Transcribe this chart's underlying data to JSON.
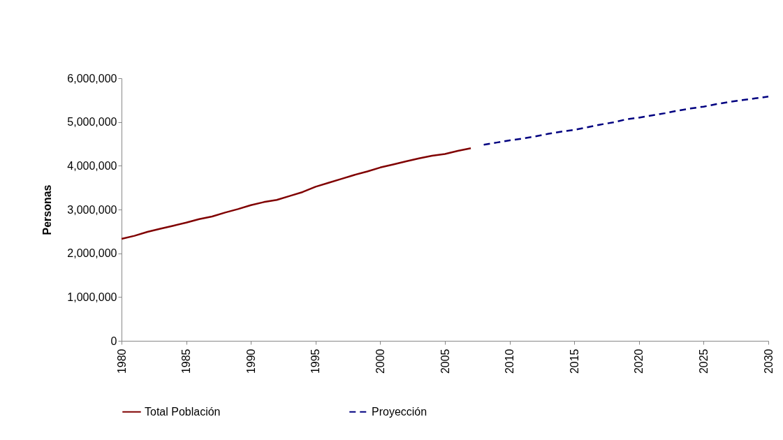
{
  "chart_data": {
    "type": "line",
    "ylabel": "Personas",
    "xlim": [
      1980,
      2030
    ],
    "xticks": [
      1980,
      1985,
      1990,
      1995,
      2000,
      2005,
      2010,
      2015,
      2020,
      2025,
      2030
    ],
    "ylim": [
      0,
      6000000
    ],
    "yticks": [
      0,
      {
        "value": 1000000,
        "label": "1,000,000"
      },
      {
        "value": 2000000,
        "label": "2,000,000"
      },
      {
        "value": 3000000,
        "label": "3,000,000"
      },
      {
        "value": 4000000,
        "label": "4,000,000"
      },
      {
        "value": 5000000,
        "label": "5,000,000"
      },
      {
        "value": 6000000,
        "label": "6,000,000"
      }
    ],
    "grid": false,
    "legend": "bottom",
    "series": [
      {
        "name": "Total Población",
        "color": "#800000",
        "line_style": "solid",
        "x": [
          1980,
          1981,
          1982,
          1983,
          1984,
          1985,
          1986,
          1987,
          1988,
          1989,
          1990,
          1991,
          1992,
          1993,
          1994,
          1995,
          1996,
          1997,
          1998,
          1999,
          2000,
          2001,
          2002,
          2003,
          2004,
          2005,
          2006,
          2007
        ],
        "values": [
          2330000,
          2400000,
          2490000,
          2560000,
          2630000,
          2700000,
          2780000,
          2840000,
          2930000,
          3010000,
          3100000,
          3170000,
          3220000,
          3310000,
          3400000,
          3520000,
          3610000,
          3700000,
          3790000,
          3870000,
          3960000,
          4030000,
          4100000,
          4170000,
          4230000,
          4270000,
          4340000,
          4400000
        ]
      },
      {
        "name": "Proyección",
        "color": "#000080",
        "line_style": "dashed",
        "x": [
          2008,
          2009,
          2010,
          2011,
          2012,
          2013,
          2014,
          2015,
          2016,
          2017,
          2018,
          2019,
          2020,
          2021,
          2022,
          2023,
          2024,
          2025,
          2026,
          2027,
          2028,
          2029,
          2030
        ],
        "values": [
          4480000,
          4530000,
          4580000,
          4620000,
          4670000,
          4730000,
          4780000,
          4820000,
          4880000,
          4940000,
          4990000,
          5060000,
          5100000,
          5150000,
          5200000,
          5260000,
          5310000,
          5350000,
          5410000,
          5460000,
          5500000,
          5540000,
          5580000
        ]
      }
    ]
  }
}
